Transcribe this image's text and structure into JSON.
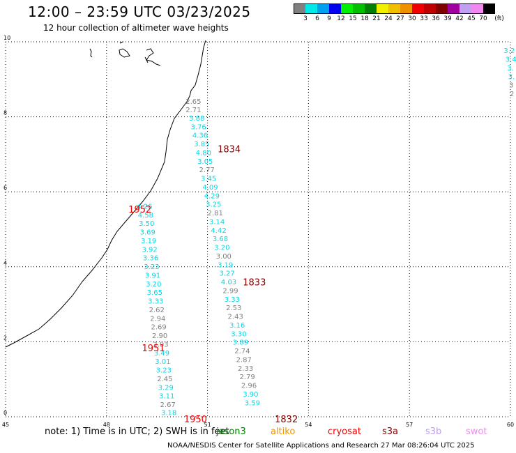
{
  "header": {
    "title": "12:00 – 23:59 UTC 03/23/2025",
    "subtitle": "12 hour collection of altimeter wave heights"
  },
  "legend": {
    "unit": "(ft)",
    "bins": [
      {
        "label": "3",
        "color": "#808080"
      },
      {
        "label": "6",
        "color": "#00e8e8"
      },
      {
        "label": "9",
        "color": "#00a0f0"
      },
      {
        "label": "12",
        "color": "#0000f0"
      },
      {
        "label": "15",
        "color": "#00f000"
      },
      {
        "label": "18",
        "color": "#00c000"
      },
      {
        "label": "21",
        "color": "#008000"
      },
      {
        "label": "24",
        "color": "#f0f000"
      },
      {
        "label": "27",
        "color": "#f0c000"
      },
      {
        "label": "30",
        "color": "#f09000"
      },
      {
        "label": "33",
        "color": "#f00000"
      },
      {
        "label": "36",
        "color": "#c00000"
      },
      {
        "label": "39",
        "color": "#800000"
      },
      {
        "label": "42",
        "color": "#a000a0"
      },
      {
        "label": "45",
        "color": "#c0a0f0"
      },
      {
        "label": "70",
        "color": "#f088f0"
      },
      {
        "label": "",
        "color": "#000000"
      }
    ]
  },
  "axes": {
    "x_ticks": [
      "45",
      "48",
      "51",
      "54",
      "57",
      "60"
    ],
    "y_ticks": [
      "0",
      "2",
      "4",
      "6",
      "8",
      "10"
    ],
    "lon_range": [
      45,
      60
    ],
    "lat_range": [
      0,
      10
    ]
  },
  "pass_labels": [
    {
      "text": "1834",
      "color": "#800000",
      "lon": 51.3,
      "lat": 7.05
    },
    {
      "text": "1952",
      "color": "#f00000",
      "lon": 48.65,
      "lat": 5.45
    },
    {
      "text": "1833",
      "color": "#800000",
      "lon": 52.05,
      "lat": 3.5
    },
    {
      "text": "1951",
      "color": "#f00000",
      "lon": 49.05,
      "lat": 1.75
    },
    {
      "text": "1950",
      "color": "#f00000",
      "lon": 50.3,
      "lat": -0.15
    },
    {
      "text": "1832",
      "color": "#800000",
      "lon": 53.0,
      "lat": -0.15
    }
  ],
  "wave_heights": [
    {
      "v": "2.65",
      "c": "#808080",
      "lon": 50.35,
      "lat": 8.35
    },
    {
      "v": "2.71",
      "c": "#808080",
      "lon": 50.35,
      "lat": 8.12
    },
    {
      "v": "3.88",
      "c": "#00d8e8",
      "lon": 50.45,
      "lat": 7.9
    },
    {
      "v": "3.76",
      "c": "#00d8e8",
      "lon": 50.5,
      "lat": 7.67
    },
    {
      "v": "4.36",
      "c": "#00d8e8",
      "lon": 50.55,
      "lat": 7.44
    },
    {
      "v": "3.85",
      "c": "#00d8e8",
      "lon": 50.6,
      "lat": 7.21
    },
    {
      "v": "4.80",
      "c": "#00d8e8",
      "lon": 50.65,
      "lat": 6.98
    },
    {
      "v": "3.05",
      "c": "#00d8e8",
      "lon": 50.7,
      "lat": 6.75
    },
    {
      "v": "2.77",
      "c": "#808080",
      "lon": 50.75,
      "lat": 6.52
    },
    {
      "v": "3.45",
      "c": "#00d8e8",
      "lon": 50.8,
      "lat": 6.29
    },
    {
      "v": "4.09",
      "c": "#00d8e8",
      "lon": 50.85,
      "lat": 6.06
    },
    {
      "v": "4.29",
      "c": "#00d8e8",
      "lon": 50.9,
      "lat": 5.83
    },
    {
      "v": "3.25",
      "c": "#00d8e8",
      "lon": 50.95,
      "lat": 5.6
    },
    {
      "v": "2.81",
      "c": "#808080",
      "lon": 51.0,
      "lat": 5.37
    },
    {
      "v": "3.14",
      "c": "#00d8e8",
      "lon": 51.05,
      "lat": 5.14
    },
    {
      "v": "4.42",
      "c": "#00d8e8",
      "lon": 51.1,
      "lat": 4.91
    },
    {
      "v": "3.68",
      "c": "#00d8e8",
      "lon": 51.15,
      "lat": 4.68
    },
    {
      "v": "3.20",
      "c": "#00d8e8",
      "lon": 51.2,
      "lat": 4.45
    },
    {
      "v": "3.00",
      "c": "#808080",
      "lon": 51.25,
      "lat": 4.22
    },
    {
      "v": "3.19",
      "c": "#00d8e8",
      "lon": 51.3,
      "lat": 3.99
    },
    {
      "v": "3.27",
      "c": "#00d8e8",
      "lon": 51.35,
      "lat": 3.76
    },
    {
      "v": "4.03",
      "c": "#00d8e8",
      "lon": 51.4,
      "lat": 3.53
    },
    {
      "v": "2.99",
      "c": "#808080",
      "lon": 51.45,
      "lat": 3.3
    },
    {
      "v": "3.33",
      "c": "#00d8e8",
      "lon": 51.5,
      "lat": 3.07
    },
    {
      "v": "2.53",
      "c": "#808080",
      "lon": 51.55,
      "lat": 2.84
    },
    {
      "v": "2.43",
      "c": "#808080",
      "lon": 51.6,
      "lat": 2.61
    },
    {
      "v": "3.16",
      "c": "#00d8e8",
      "lon": 51.65,
      "lat": 2.38
    },
    {
      "v": "3.30",
      "c": "#00d8e8",
      "lon": 51.7,
      "lat": 2.15
    },
    {
      "v": "3.89",
      "c": "#00d8e8",
      "lon": 51.75,
      "lat": 1.92
    },
    {
      "v": "2.74",
      "c": "#808080",
      "lon": 51.8,
      "lat": 1.69
    },
    {
      "v": "2.87",
      "c": "#808080",
      "lon": 51.85,
      "lat": 1.46
    },
    {
      "v": "2.33",
      "c": "#808080",
      "lon": 51.9,
      "lat": 1.23
    },
    {
      "v": "2.79",
      "c": "#808080",
      "lon": 51.95,
      "lat": 1.0
    },
    {
      "v": "2.96",
      "c": "#808080",
      "lon": 52.0,
      "lat": 0.77
    },
    {
      "v": "3.90",
      "c": "#00d8e8",
      "lon": 52.05,
      "lat": 0.54
    },
    {
      "v": "3.59",
      "c": "#00d8e8",
      "lon": 52.1,
      "lat": 0.31
    },
    {
      "v": "4.26",
      "c": "#00d8e8",
      "lon": 48.9,
      "lat": 5.55
    },
    {
      "v": "4.58",
      "c": "#00d8e8",
      "lon": 48.93,
      "lat": 5.32
    },
    {
      "v": "3.50",
      "c": "#00d8e8",
      "lon": 48.96,
      "lat": 5.09
    },
    {
      "v": "3.69",
      "c": "#00d8e8",
      "lon": 48.99,
      "lat": 4.86
    },
    {
      "v": "3.19",
      "c": "#00d8e8",
      "lon": 49.02,
      "lat": 4.63
    },
    {
      "v": "3.92",
      "c": "#00d8e8",
      "lon": 49.05,
      "lat": 4.4
    },
    {
      "v": "3.36",
      "c": "#00d8e8",
      "lon": 49.08,
      "lat": 4.17
    },
    {
      "v": "3.23",
      "c": "#00d8e8",
      "lon": 49.11,
      "lat": 3.94
    },
    {
      "v": "3.91",
      "c": "#00d8e8",
      "lon": 49.14,
      "lat": 3.71
    },
    {
      "v": "3.20",
      "c": "#00d8e8",
      "lon": 49.17,
      "lat": 3.48
    },
    {
      "v": "3.65",
      "c": "#00d8e8",
      "lon": 49.2,
      "lat": 3.25
    },
    {
      "v": "3.33",
      "c": "#00d8e8",
      "lon": 49.23,
      "lat": 3.02
    },
    {
      "v": "2.62",
      "c": "#808080",
      "lon": 49.26,
      "lat": 2.79
    },
    {
      "v": "2.94",
      "c": "#808080",
      "lon": 49.29,
      "lat": 2.56
    },
    {
      "v": "2.69",
      "c": "#808080",
      "lon": 49.32,
      "lat": 2.33
    },
    {
      "v": "2.90",
      "c": "#808080",
      "lon": 49.35,
      "lat": 2.1
    },
    {
      "v": "2.93",
      "c": "#808080",
      "lon": 49.38,
      "lat": 1.87
    },
    {
      "v": "3.49",
      "c": "#00d8e8",
      "lon": 49.41,
      "lat": 1.64
    },
    {
      "v": "3.01",
      "c": "#00d8e8",
      "lon": 49.44,
      "lat": 1.41
    },
    {
      "v": "3.23",
      "c": "#00d8e8",
      "lon": 49.47,
      "lat": 1.18
    },
    {
      "v": "2.45",
      "c": "#808080",
      "lon": 49.5,
      "lat": 0.95
    },
    {
      "v": "3.29",
      "c": "#00d8e8",
      "lon": 49.53,
      "lat": 0.72
    },
    {
      "v": "3.11",
      "c": "#00d8e8",
      "lon": 49.56,
      "lat": 0.49
    },
    {
      "v": "2.67",
      "c": "#808080",
      "lon": 49.59,
      "lat": 0.26
    },
    {
      "v": "3.18",
      "c": "#00d8e8",
      "lon": 49.62,
      "lat": 0.05
    },
    {
      "v": "3.2",
      "c": "#00d8e8",
      "lon": 59.8,
      "lat": 9.7
    },
    {
      "v": "3.4",
      "c": "#00d8e8",
      "lon": 59.85,
      "lat": 9.47
    },
    {
      "v": "3.",
      "c": "#00d8e8",
      "lon": 59.9,
      "lat": 9.24
    },
    {
      "v": "3.",
      "c": "#00d8e8",
      "lon": 59.93,
      "lat": 9.01
    },
    {
      "v": "3",
      "c": "#808080",
      "lon": 59.96,
      "lat": 8.78
    },
    {
      "v": "2",
      "c": "#808080",
      "lon": 59.98,
      "lat": 8.55
    }
  ],
  "footer": {
    "note": "note: 1) Time is in UTC; 2) SWH is in feet",
    "satellites": [
      {
        "name": "jason3",
        "color": "#008000"
      },
      {
        "name": "altiko",
        "color": "#f09000"
      },
      {
        "name": "cryosat",
        "color": "#f00000"
      },
      {
        "name": "s3a",
        "color": "#800000"
      },
      {
        "name": "s3b",
        "color": "#c0a0f0"
      },
      {
        "name": "swot",
        "color": "#f088f0"
      }
    ],
    "credit": "NOAA/NESDIS Center for Satellite Applications and Research   27 Mar 08:26:04 UTC 2025"
  }
}
